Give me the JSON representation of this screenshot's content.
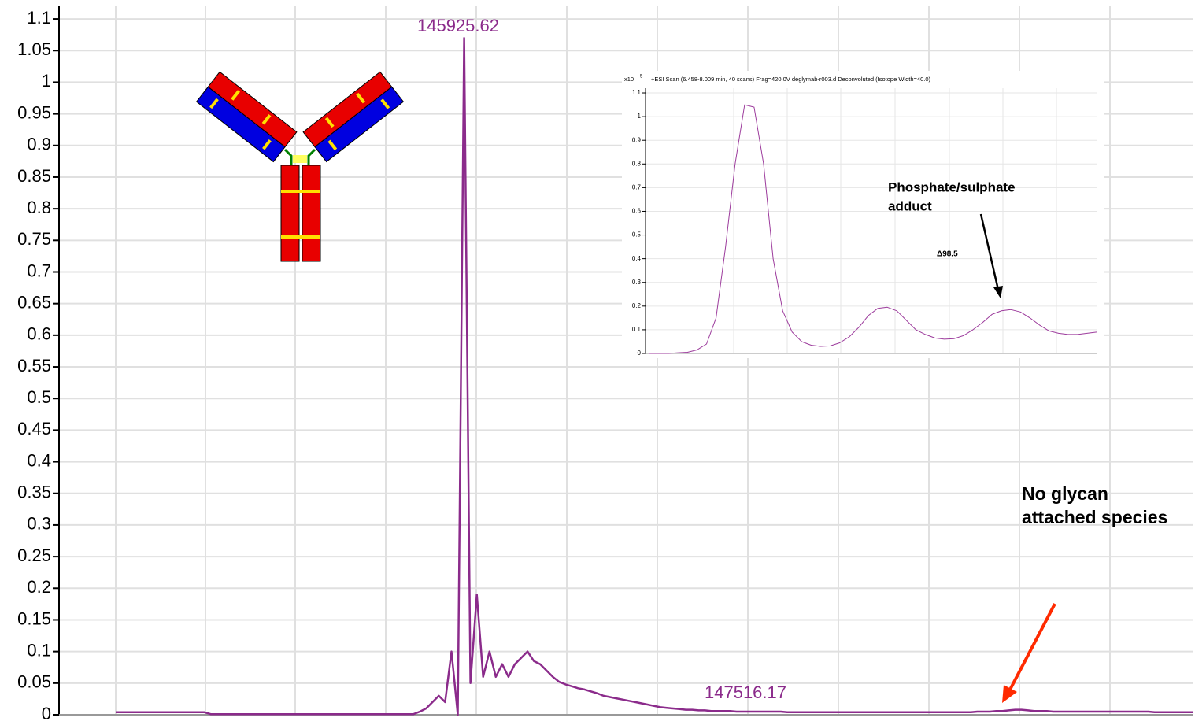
{
  "chart_data": [
    {
      "type": "line",
      "ylim": [
        0,
        1.12
      ],
      "yticks": [
        0,
        0.05,
        0.1,
        0.15,
        0.2,
        0.25,
        0.3,
        0.35,
        0.4,
        0.45,
        0.5,
        0.55,
        0.6,
        0.65,
        0.7,
        0.75,
        0.8,
        0.85,
        0.9,
        0.95,
        1,
        1.05,
        1.1
      ],
      "grid": true,
      "color": "#8b2b8b",
      "values": [
        0.004,
        0.004,
        0.004,
        0.004,
        0.004,
        0.004,
        0.004,
        0.004,
        0.004,
        0.004,
        0.004,
        0.004,
        0.004,
        0.004,
        0.004,
        0.001,
        0.001,
        0.001,
        0.001,
        0.001,
        0.001,
        0.001,
        0.001,
        0.001,
        0.001,
        0.001,
        0.001,
        0.001,
        0.001,
        0.001,
        0.001,
        0.001,
        0.001,
        0.001,
        0.001,
        0.001,
        0.001,
        0.001,
        0.001,
        0.001,
        0.001,
        0.001,
        0.001,
        0.001,
        0.001,
        0.001,
        0.001,
        0.001,
        0.005,
        0.01,
        0.02,
        0.03,
        0.02,
        0.1,
        0.0,
        1.07,
        0.05,
        0.19,
        0.06,
        0.1,
        0.06,
        0.08,
        0.06,
        0.08,
        0.09,
        0.1,
        0.085,
        0.08,
        0.07,
        0.06,
        0.052,
        0.048,
        0.045,
        0.042,
        0.04,
        0.037,
        0.034,
        0.03,
        0.028,
        0.026,
        0.024,
        0.022,
        0.02,
        0.018,
        0.016,
        0.014,
        0.012,
        0.011,
        0.01,
        0.009,
        0.008,
        0.008,
        0.007,
        0.007,
        0.006,
        0.006,
        0.006,
        0.006,
        0.005,
        0.005,
        0.005,
        0.005,
        0.005,
        0.005,
        0.005,
        0.005,
        0.004,
        0.004,
        0.004,
        0.004,
        0.004,
        0.004,
        0.004,
        0.004,
        0.004,
        0.004,
        0.004,
        0.004,
        0.004,
        0.004,
        0.004,
        0.004,
        0.004,
        0.004,
        0.004,
        0.004,
        0.004,
        0.004,
        0.004,
        0.004,
        0.004,
        0.004,
        0.004,
        0.004,
        0.004,
        0.004,
        0.005,
        0.005,
        0.005,
        0.006,
        0.006,
        0.007,
        0.008,
        0.008,
        0.007,
        0.006,
        0.006,
        0.006,
        0.005,
        0.005,
        0.005,
        0.005,
        0.005,
        0.005,
        0.005,
        0.005,
        0.005,
        0.005,
        0.005,
        0.005,
        0.005,
        0.005,
        0.005,
        0.005,
        0.004,
        0.004,
        0.004,
        0.004,
        0.004,
        0.004,
        0.004
      ],
      "annotations": [
        "145925.62",
        "147516.17",
        "No glycan",
        "attached species"
      ]
    },
    {
      "type": "line",
      "title": "+ESI Scan (6.458-8.009 min, 40 scans) Frag=420.0V deglymab-r003.d   Deconvoluted (Isotope Width=40.0)",
      "y_multiplier": "x10",
      "y_exponent": "5",
      "ylim": [
        0,
        1.12
      ],
      "yticks": [
        0,
        0.1,
        0.2,
        0.3,
        0.4,
        0.5,
        0.6,
        0.7,
        0.8,
        0.9,
        1,
        1.1
      ],
      "grid": true,
      "color": "#9c3b9c",
      "values": [
        0,
        0,
        0,
        0.003,
        0.005,
        0.015,
        0.04,
        0.15,
        0.45,
        0.8,
        1.05,
        1.04,
        0.8,
        0.4,
        0.18,
        0.09,
        0.05,
        0.035,
        0.03,
        0.032,
        0.045,
        0.07,
        0.11,
        0.16,
        0.19,
        0.195,
        0.18,
        0.14,
        0.1,
        0.08,
        0.065,
        0.06,
        0.062,
        0.075,
        0.1,
        0.13,
        0.165,
        0.18,
        0.185,
        0.175,
        0.15,
        0.12,
        0.095,
        0.085,
        0.08,
        0.08,
        0.085,
        0.09
      ],
      "annotations": [
        "Phosphate/sulphate",
        "adduct",
        "Δ98.5"
      ]
    }
  ]
}
